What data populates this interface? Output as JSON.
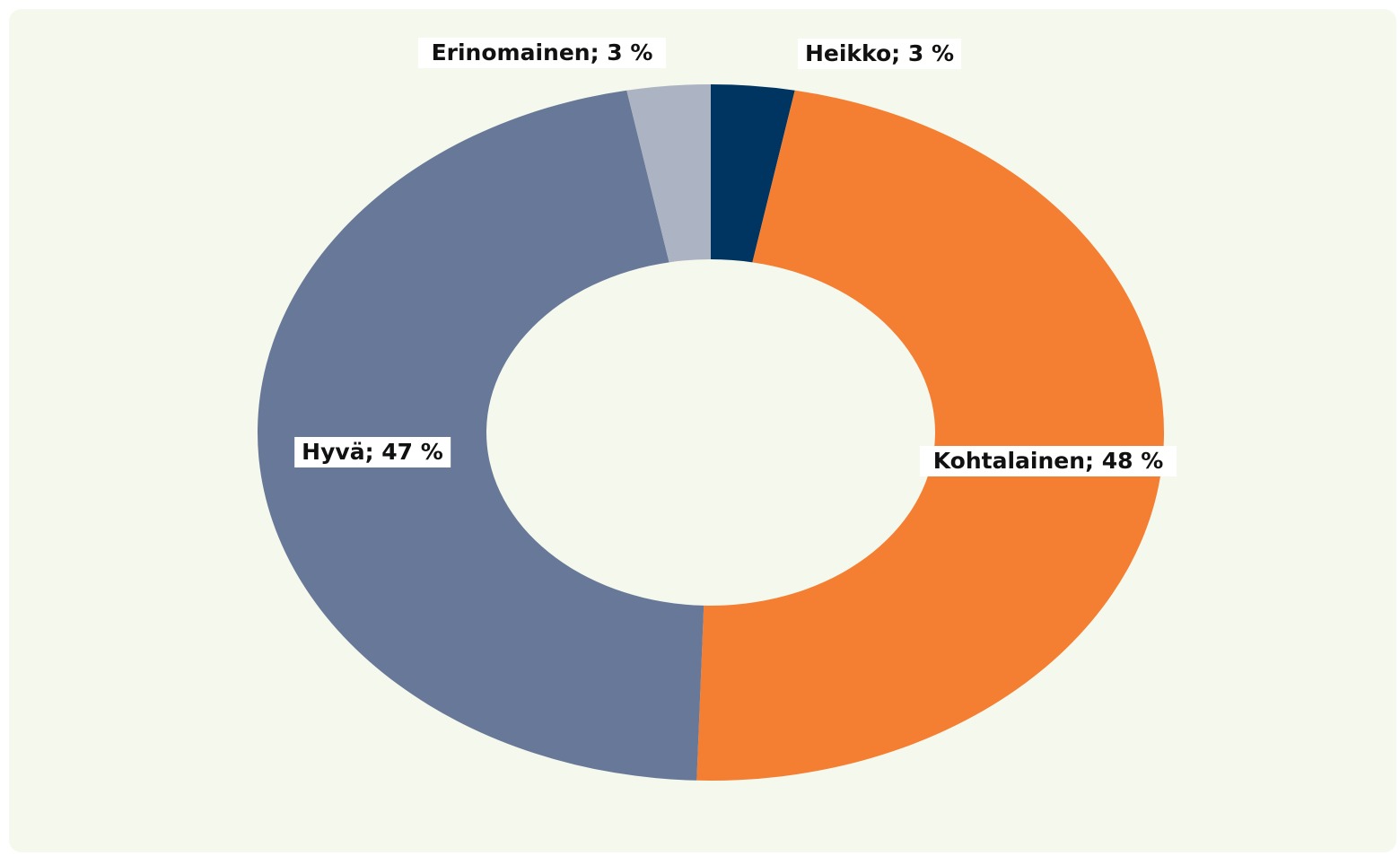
{
  "chart_data": {
    "type": "donut",
    "categories": [
      "Heikko",
      "Kohtalainen",
      "Hyvä",
      "Erinomainen"
    ],
    "values": [
      3,
      48,
      47,
      3
    ],
    "value_labels": [
      "Heikko; 3 %",
      "Kohtalainen; 48 %",
      "Hyvä; 47 %",
      "Erinomainen; 3 %"
    ],
    "colors": [
      "#003562",
      "#f47e31",
      "#687898",
      "#acb4c4"
    ]
  }
}
